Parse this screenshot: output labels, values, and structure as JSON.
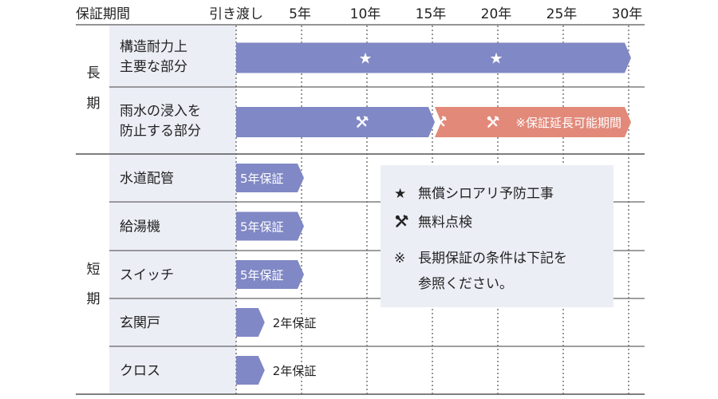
{
  "header": {
    "period_label": "保証期間",
    "handover_label": "引き渡し",
    "year_ticks": [
      {
        "year": 5,
        "label": "5年"
      },
      {
        "year": 10,
        "label": "10年"
      },
      {
        "year": 15,
        "label": "15年"
      },
      {
        "year": 20,
        "label": "20年"
      },
      {
        "year": 25,
        "label": "25年"
      },
      {
        "year": 30,
        "label": "30年"
      }
    ]
  },
  "groups": {
    "long": {
      "label_chars": [
        "長",
        "期"
      ]
    },
    "short": {
      "label_chars": [
        "短",
        "期"
      ]
    }
  },
  "chart_data": {
    "type": "bar",
    "x_axis": {
      "unit": "年",
      "min": 0,
      "max": 30,
      "ticks": [
        5,
        10,
        15,
        20,
        25,
        30
      ]
    },
    "rows": [
      {
        "group": "long",
        "label_lines": [
          "構造耐力上",
          "主要な部分"
        ],
        "segments": [
          {
            "kind": "guarantee",
            "start": 0,
            "end": 30,
            "color": "#8088c5",
            "label": ""
          }
        ],
        "marks": [
          {
            "kind": "star",
            "year": 10
          },
          {
            "kind": "star",
            "year": 20
          }
        ]
      },
      {
        "group": "long",
        "label_lines": [
          "雨水の浸入を",
          "防止する部分"
        ],
        "segments": [
          {
            "kind": "guarantee",
            "start": 0,
            "end": 15,
            "color": "#8088c5",
            "label": ""
          },
          {
            "kind": "extendable",
            "start": 15,
            "end": 30,
            "color": "#e2897a",
            "label": "※保証延長可能期間"
          }
        ],
        "marks": [
          {
            "kind": "tool",
            "year": 10
          },
          {
            "kind": "tool",
            "year": 15
          },
          {
            "kind": "tool",
            "year": 20
          }
        ]
      },
      {
        "group": "short",
        "label_lines": [
          "水道配管"
        ],
        "segments": [
          {
            "kind": "guarantee",
            "start": 0,
            "end": 5,
            "color": "#8088c5",
            "label": "5年保証",
            "label_inside": true
          }
        ],
        "marks": []
      },
      {
        "group": "short",
        "label_lines": [
          "給湯機"
        ],
        "segments": [
          {
            "kind": "guarantee",
            "start": 0,
            "end": 5,
            "color": "#8088c5",
            "label": "5年保証",
            "label_inside": true
          }
        ],
        "marks": []
      },
      {
        "group": "short",
        "label_lines": [
          "スイッチ"
        ],
        "segments": [
          {
            "kind": "guarantee",
            "start": 0,
            "end": 5,
            "color": "#8088c5",
            "label": "5年保証",
            "label_inside": true
          }
        ],
        "marks": []
      },
      {
        "group": "short",
        "label_lines": [
          "玄関戸"
        ],
        "segments": [
          {
            "kind": "guarantee",
            "start": 0,
            "end": 2,
            "color": "#8088c5",
            "label": "2年保証",
            "label_inside": false
          }
        ],
        "marks": []
      },
      {
        "group": "short",
        "label_lines": [
          "クロス"
        ],
        "segments": [
          {
            "kind": "guarantee",
            "start": 0,
            "end": 2,
            "color": "#8088c5",
            "label": "2年保証",
            "label_inside": false
          }
        ],
        "marks": []
      }
    ]
  },
  "legend": {
    "star_symbol": "★",
    "star_text": "無償シロアリ予防工事",
    "tool_text": "無料点検",
    "note_symbol": "※",
    "note_lines": [
      "長期保証の条件は下記を",
      "参照ください。"
    ]
  },
  "colors": {
    "guarantee": "#8088c5",
    "extendable": "#e2897a",
    "label_col_bg": "#eceef6",
    "legend_bg": "#eceef6",
    "grid": "#555555"
  }
}
